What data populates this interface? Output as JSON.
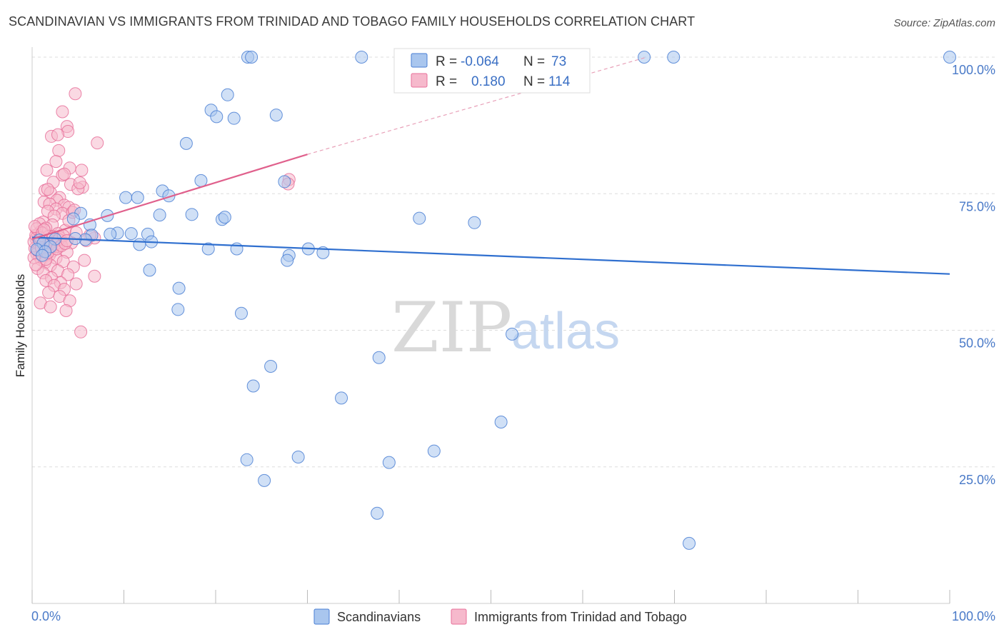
{
  "title": "SCANDINAVIAN VS IMMIGRANTS FROM TRINIDAD AND TOBAGO FAMILY HOUSEHOLDS CORRELATION CHART",
  "source": "Source: ZipAtlas.com",
  "watermark": {
    "zip": "ZIP",
    "atlas": "atlas"
  },
  "colors": {
    "blue": "#4a7fd4",
    "blue_fill": "#a9c6ee",
    "pink": "#e8709a",
    "pink_fill": "#f6b9cc",
    "grid": "#dddddd",
    "tick_text": "#4a7ac8"
  },
  "legend": {
    "rows": [
      {
        "r_label": "R =",
        "r_value": "-0.064",
        "n_label": "N =",
        "n_value": "73"
      },
      {
        "r_label": "R =",
        "r_value": "0.180",
        "n_label": "N =",
        "n_value": "114"
      }
    ]
  },
  "bottom_legend": [
    "Scandinavians",
    "Immigrants from Trinidad and Tobago"
  ],
  "chart_data": {
    "type": "scatter",
    "ylabel": "Family Households",
    "xlabel": "",
    "xlim": [
      0,
      100
    ],
    "ylim": [
      0,
      100
    ],
    "x_tick_labels": [
      "0.0%",
      "100.0%"
    ],
    "y_tick_labels": [
      "100.0%",
      "75.0%",
      "50.0%",
      "25.0%"
    ],
    "y_ticks": [
      100,
      75,
      50,
      25
    ],
    "grid": true,
    "series": [
      {
        "name": "Scandinavians",
        "trend": {
          "x": [
            0,
            100
          ],
          "y": [
            67.0,
            60.3
          ]
        },
        "points": [
          [
            23.5,
            100
          ],
          [
            23.9,
            100
          ],
          [
            35.9,
            100
          ],
          [
            66.7,
            100
          ],
          [
            69.9,
            100
          ],
          [
            100,
            100
          ],
          [
            21.3,
            93.1
          ],
          [
            19.5,
            90.3
          ],
          [
            20.1,
            89.1
          ],
          [
            22.0,
            88.8
          ],
          [
            26.6,
            89.4
          ],
          [
            16.8,
            84.2
          ],
          [
            18.4,
            77.4
          ],
          [
            27.5,
            77.2
          ],
          [
            14.2,
            75.5
          ],
          [
            14.9,
            74.6
          ],
          [
            10.2,
            74.3
          ],
          [
            11.5,
            74.3
          ],
          [
            5.3,
            71.4
          ],
          [
            8.2,
            71.0
          ],
          [
            13.9,
            71.1
          ],
          [
            17.4,
            71.2
          ],
          [
            20.7,
            70.3
          ],
          [
            21.0,
            70.7
          ],
          [
            4.5,
            70.4
          ],
          [
            42.2,
            70.5
          ],
          [
            48.2,
            69.7
          ],
          [
            6.3,
            69.3
          ],
          [
            9.3,
            67.8
          ],
          [
            10.8,
            67.7
          ],
          [
            12.6,
            67.6
          ],
          [
            8.5,
            67.6
          ],
          [
            6.5,
            67.4
          ],
          [
            5.8,
            66.6
          ],
          [
            4.7,
            66.8
          ],
          [
            2.5,
            66.7
          ],
          [
            13.0,
            66.2
          ],
          [
            11.7,
            65.7
          ],
          [
            0.8,
            66.5
          ],
          [
            1.2,
            65.9
          ],
          [
            2.0,
            65.3
          ],
          [
            0.5,
            64.8
          ],
          [
            1.4,
            64.4
          ],
          [
            1.1,
            63.7
          ],
          [
            19.2,
            64.9
          ],
          [
            22.3,
            64.9
          ],
          [
            28.0,
            63.7
          ],
          [
            30.1,
            64.9
          ],
          [
            31.7,
            64.2
          ],
          [
            27.8,
            62.8
          ],
          [
            12.8,
            61.0
          ],
          [
            16.0,
            57.7
          ],
          [
            15.9,
            53.8
          ],
          [
            22.8,
            53.1
          ],
          [
            52.3,
            49.3
          ],
          [
            37.8,
            45.0
          ],
          [
            26.0,
            43.4
          ],
          [
            24.1,
            39.8
          ],
          [
            33.7,
            37.6
          ],
          [
            51.1,
            33.2
          ],
          [
            43.8,
            27.9
          ],
          [
            29.0,
            26.8
          ],
          [
            23.4,
            26.3
          ],
          [
            38.9,
            25.8
          ],
          [
            25.3,
            22.5
          ],
          [
            37.6,
            16.5
          ],
          [
            71.6,
            11.0
          ]
        ]
      },
      {
        "name": "Immigrants from Trinidad and Tobago",
        "trend": {
          "x": [
            0,
            30
          ],
          "y": [
            66.7,
            82.2
          ]
        },
        "trend_extension": {
          "x": [
            30,
            67
          ],
          "y": [
            82.2,
            100
          ]
        },
        "points": [
          [
            4.7,
            93.3
          ],
          [
            3.3,
            90.0
          ],
          [
            3.8,
            87.3
          ],
          [
            3.9,
            86.4
          ],
          [
            7.1,
            84.3
          ],
          [
            2.1,
            85.5
          ],
          [
            2.8,
            85.8
          ],
          [
            2.9,
            82.9
          ],
          [
            2.6,
            80.9
          ],
          [
            4.1,
            79.7
          ],
          [
            1.6,
            79.3
          ],
          [
            3.3,
            78.4
          ],
          [
            3.5,
            78.6
          ],
          [
            2.3,
            77.1
          ],
          [
            4.2,
            76.7
          ],
          [
            5.5,
            76.2
          ],
          [
            1.4,
            75.6
          ],
          [
            2.0,
            75.2
          ],
          [
            3.0,
            74.3
          ],
          [
            2.7,
            73.8
          ],
          [
            1.3,
            73.5
          ],
          [
            1.9,
            73.1
          ],
          [
            3.5,
            72.9
          ],
          [
            4.0,
            72.5
          ],
          [
            2.6,
            72.2
          ],
          [
            1.7,
            71.8
          ],
          [
            3.3,
            71.4
          ],
          [
            2.4,
            70.9
          ],
          [
            1.2,
            69.8
          ],
          [
            0.8,
            69.5
          ],
          [
            2.2,
            69.3
          ],
          [
            1.5,
            68.7
          ],
          [
            3.6,
            68.3
          ],
          [
            0.9,
            68.0
          ],
          [
            2.8,
            67.7
          ],
          [
            4.8,
            67.9
          ],
          [
            0.6,
            67.5
          ],
          [
            1.8,
            67.2
          ],
          [
            3.0,
            67.0
          ],
          [
            0.4,
            66.8
          ],
          [
            1.1,
            66.5
          ],
          [
            2.5,
            66.3
          ],
          [
            4.3,
            66.0
          ],
          [
            0.7,
            65.8
          ],
          [
            1.6,
            65.5
          ],
          [
            2.9,
            65.3
          ],
          [
            0.3,
            65.0
          ],
          [
            1.3,
            64.7
          ],
          [
            2.2,
            64.5
          ],
          [
            3.8,
            64.3
          ],
          [
            0.5,
            64.0
          ],
          [
            1.9,
            63.8
          ],
          [
            0.8,
            63.5
          ],
          [
            2.6,
            63.2
          ],
          [
            1.0,
            62.9
          ],
          [
            3.4,
            62.6
          ],
          [
            5.7,
            62.8
          ],
          [
            1.4,
            62.4
          ],
          [
            2.0,
            61.9
          ],
          [
            4.5,
            61.6
          ],
          [
            0.6,
            61.3
          ],
          [
            2.8,
            60.9
          ],
          [
            1.2,
            60.5
          ],
          [
            3.9,
            60.2
          ],
          [
            6.8,
            59.9
          ],
          [
            2.1,
            59.6
          ],
          [
            1.5,
            59.1
          ],
          [
            3.1,
            58.7
          ],
          [
            4.8,
            58.5
          ],
          [
            2.4,
            58.2
          ],
          [
            3.5,
            57.5
          ],
          [
            1.8,
            56.9
          ],
          [
            3.0,
            56.2
          ],
          [
            4.1,
            55.4
          ],
          [
            0.9,
            55.0
          ],
          [
            2.0,
            54.3
          ],
          [
            3.7,
            53.6
          ],
          [
            5.3,
            49.7
          ],
          [
            28.0,
            77.6
          ],
          [
            27.9,
            76.8
          ],
          [
            6.8,
            66.9
          ],
          [
            6.3,
            67.4
          ],
          [
            5.9,
            66.4
          ],
          [
            0.2,
            66.2
          ],
          [
            0.4,
            67.4
          ],
          [
            0.5,
            68.6
          ],
          [
            0.3,
            69.0
          ],
          [
            0.2,
            63.3
          ],
          [
            0.4,
            62.0
          ],
          [
            0.6,
            64.6
          ],
          [
            0.9,
            66.9
          ],
          [
            1.1,
            67.8
          ],
          [
            1.3,
            68.4
          ],
          [
            1.0,
            65.1
          ],
          [
            1.5,
            63.0
          ],
          [
            1.7,
            64.2
          ],
          [
            2.0,
            66.0
          ],
          [
            2.3,
            67.1
          ],
          [
            2.5,
            65.7
          ],
          [
            2.7,
            64.9
          ],
          [
            2.9,
            66.6
          ],
          [
            3.2,
            65.5
          ],
          [
            3.4,
            67.3
          ],
          [
            3.6,
            65.9
          ],
          [
            3.8,
            66.4
          ],
          [
            4.0,
            70.1
          ],
          [
            4.4,
            71.6
          ],
          [
            4.6,
            72.0
          ],
          [
            5.0,
            75.9
          ],
          [
            5.2,
            77.0
          ],
          [
            5.4,
            79.3
          ],
          [
            1.7,
            75.8
          ]
        ]
      }
    ]
  }
}
